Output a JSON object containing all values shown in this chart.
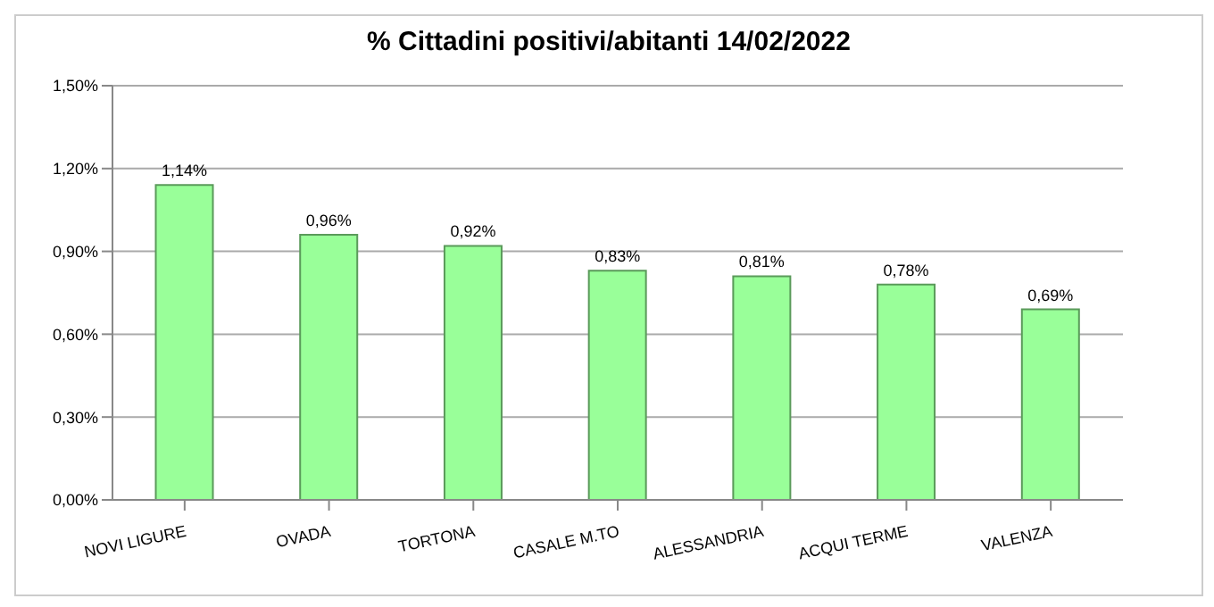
{
  "chart_data": {
    "type": "bar",
    "title": "% Cittadini positivi/abitanti  14/02/2022",
    "categories": [
      "NOVI LIGURE",
      "OVADA",
      "TORTONA",
      "CASALE M.TO",
      "ALESSANDRIA",
      "ACQUI TERME",
      "VALENZA"
    ],
    "values": [
      1.14,
      0.96,
      0.92,
      0.83,
      0.81,
      0.78,
      0.69
    ],
    "value_labels": [
      "1,14%",
      "0,96%",
      "0,92%",
      "0,83%",
      "0,81%",
      "0,78%",
      "0,69%"
    ],
    "color": "#99ff99",
    "ylim": [
      0,
      1.5
    ],
    "yticks": [
      {
        "value": 0,
        "label": "0,00%"
      },
      {
        "value": 0.3,
        "label": "0,30%"
      },
      {
        "value": 0.6,
        "label": "0,60%"
      },
      {
        "value": 0.9,
        "label": "0,90%"
      },
      {
        "value": 1.2,
        "label": "1,20%"
      },
      {
        "value": 1.5,
        "label": "1,50%"
      }
    ],
    "grid": "y"
  }
}
